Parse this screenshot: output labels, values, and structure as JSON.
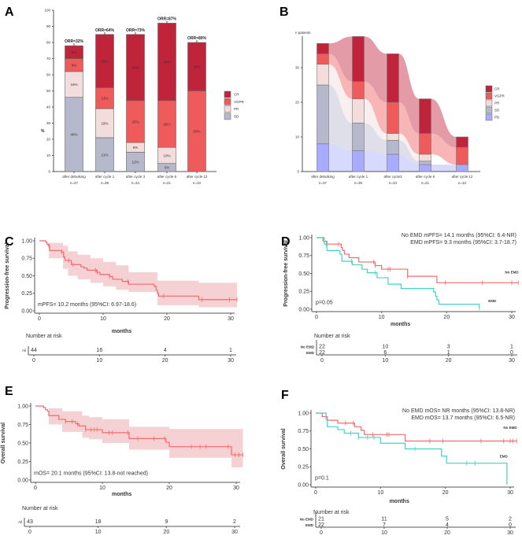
{
  "colors": {
    "CR": "#c0243b",
    "VGPR": "#ef5a5a",
    "PR": "#f2dcdc",
    "SD": "#b6b8cb",
    "PD": "#a9abff",
    "all": "#f26b6b",
    "no_emd": "#f26b6b",
    "emd": "#3fd4c4",
    "ci": "#f5c9cc"
  },
  "chart_data": [
    {
      "panel": "A",
      "type": "bar",
      "stacked": true,
      "ylabel": "%",
      "ylim": [
        0,
        100
      ],
      "yticks": [
        0,
        10,
        20,
        30,
        40,
        50,
        60,
        70,
        80,
        90,
        100
      ],
      "categories": [
        [
          "after debulking",
          "n=37"
        ],
        [
          "after cycle 1",
          "n=39"
        ],
        [
          "after cycle 3",
          "n=34"
        ],
        [
          "after cycle 6",
          "n=21"
        ],
        [
          "after cycle 12",
          "n=10"
        ]
      ],
      "annotations": [
        "ORR=32%",
        "ORR=64%",
        "ORR=73%",
        "ORR=87%",
        "ORR=80%"
      ],
      "series": [
        {
          "name": "SD",
          "values": [
            46,
            21,
            12,
            5,
            0
          ],
          "labels": [
            "46%",
            "21%",
            "12%",
            "5%",
            ""
          ]
        },
        {
          "name": "PR",
          "values": [
            16,
            18,
            6,
            10,
            0
          ],
          "labels": [
            "16%",
            "18%",
            "6%",
            "10%",
            ""
          ]
        },
        {
          "name": "VGPR",
          "values": [
            8,
            13,
            26,
            29,
            50
          ],
          "labels": [
            "8%",
            "13%",
            "26%",
            "29%",
            "50%"
          ]
        },
        {
          "name": "CR",
          "values": [
            8,
            33,
            41,
            48,
            30
          ],
          "labels": [
            "8%",
            "33%",
            "41%",
            "48%",
            "30%"
          ]
        }
      ],
      "legend": [
        "CR",
        "VGPR",
        "PR",
        "SD"
      ],
      "legend_position": "right"
    },
    {
      "panel": "B",
      "type": "alluvial",
      "ylabel": "n patients",
      "yticks": [
        0,
        10,
        20,
        30
      ],
      "categories": [
        [
          "after debulking",
          "n=37"
        ],
        [
          "after cycle 1",
          "n=39"
        ],
        [
          "after cycle3",
          "n=34"
        ],
        [
          "after cycle 6",
          "n=21"
        ],
        [
          "after cycle 12",
          "n=10"
        ]
      ],
      "series": [
        {
          "name": "PD",
          "values": [
            8,
            6,
            5,
            2,
            2
          ]
        },
        {
          "name": "SD",
          "values": [
            17,
            8,
            4,
            1,
            0
          ]
        },
        {
          "name": "PR",
          "values": [
            6,
            7,
            2,
            2,
            0
          ]
        },
        {
          "name": "VGPR",
          "values": [
            3,
            5,
            9,
            6,
            5
          ]
        },
        {
          "name": "CR",
          "values": [
            3,
            13,
            14,
            10,
            3
          ]
        }
      ],
      "legend": [
        "CR",
        "VGPR",
        "PR",
        "SD",
        "PD"
      ],
      "legend_position": "right"
    },
    {
      "panel": "C",
      "type": "line",
      "subtype": "kaplan-meier",
      "xlabel": "months",
      "ylabel": "Progression-free survival",
      "xticks": [
        0,
        10,
        20,
        30
      ],
      "yticks": [
        "0.00",
        "0.25",
        "0.50",
        "0.75",
        "1.00"
      ],
      "xlim": [
        0,
        31
      ],
      "ylim": [
        0,
        1
      ],
      "annotation": "mPFS= 10.2 months (95%CI: 6.97-18.6)",
      "series": [
        {
          "key": "all",
          "steps": [
            [
              0,
              1
            ],
            [
              1,
              0.98
            ],
            [
              1.2,
              0.95
            ],
            [
              1.4,
              0.93
            ],
            [
              1.6,
              0.86
            ],
            [
              3.5,
              0.84
            ],
            [
              3.8,
              0.77
            ],
            [
              4,
              0.72
            ],
            [
              5,
              0.66
            ],
            [
              6.5,
              0.63
            ],
            [
              7,
              0.61
            ],
            [
              7.5,
              0.58
            ],
            [
              9,
              0.55
            ],
            [
              9.5,
              0.52
            ],
            [
              11,
              0.49
            ],
            [
              11.5,
              0.45
            ],
            [
              13,
              0.42
            ],
            [
              14,
              0.38
            ],
            [
              18,
              0.35
            ],
            [
              18.3,
              0.3
            ],
            [
              18.5,
              0.25
            ],
            [
              18.7,
              0.21
            ],
            [
              25,
              0.16
            ]
          ],
          "end": 31,
          "censor": [
            1.5,
            3.5,
            4.6,
            5.3,
            8.8,
            9.1,
            11,
            13.9,
            19.5,
            25.5,
            29.8,
            31
          ],
          "ci": [
            [
              0,
              1,
              1
            ],
            [
              1.5,
              0.75,
              0.97
            ],
            [
              3.7,
              0.6,
              0.93
            ],
            [
              4.5,
              0.5,
              0.85
            ],
            [
              6,
              0.45,
              0.8
            ],
            [
              8,
              0.4,
              0.75
            ],
            [
              10,
              0.35,
              0.7
            ],
            [
              12,
              0.3,
              0.65
            ],
            [
              14,
              0.27,
              0.55
            ],
            [
              18.5,
              0.08,
              0.43
            ],
            [
              25,
              0.05,
              0.4
            ],
            [
              31,
              0.05,
              0.4
            ]
          ]
        }
      ],
      "risk": {
        "title": "Number at risk",
        "rows": [
          {
            "label": "All",
            "key": "all",
            "values": [
              "44",
              "16",
              "4",
              "1"
            ]
          }
        ],
        "xticks": [
          0,
          10,
          20,
          30
        ]
      }
    },
    {
      "panel": "D",
      "type": "line",
      "subtype": "kaplan-meier",
      "xlabel": "months",
      "ylabel": "Progression-free survival",
      "xticks": [
        0,
        10,
        20,
        30
      ],
      "yticks": [
        "0.00",
        "0.25",
        "0.50",
        "0.75",
        "1.00"
      ],
      "xlim": [
        0,
        31
      ],
      "ylim": [
        0,
        1
      ],
      "annotation_lines": [
        "No EMD mPFS= 14.1 months (95%CI: 6.4-NR)",
        "EMD mPFS= 9.3 months (95%CI: 3.7-18.7)"
      ],
      "pvalue": "p=0.05",
      "series": [
        {
          "name": "No EMD",
          "key": "no_emd",
          "steps": [
            [
              0,
              1
            ],
            [
              1,
              0.95
            ],
            [
              1.6,
              0.91
            ],
            [
              3.8,
              0.86
            ],
            [
              4,
              0.82
            ],
            [
              4.3,
              0.77
            ],
            [
              5,
              0.72
            ],
            [
              6.5,
              0.66
            ],
            [
              9,
              0.61
            ],
            [
              10,
              0.56
            ],
            [
              14,
              0.46
            ],
            [
              18.5,
              0.37
            ]
          ],
          "end": 31,
          "censor": [
            3.4,
            8.8,
            9,
            11,
            11.3,
            14,
            19.8,
            25.5,
            30,
            31
          ],
          "label_at": [
            30,
            0.5
          ]
        },
        {
          "name": "EMD",
          "key": "emd",
          "steps": [
            [
              0,
              1
            ],
            [
              1.2,
              0.91
            ],
            [
              1.6,
              0.82
            ],
            [
              3.6,
              0.77
            ],
            [
              3.9,
              0.67
            ],
            [
              5.5,
              0.62
            ],
            [
              7,
              0.56
            ],
            [
              7.8,
              0.51
            ],
            [
              9.3,
              0.44
            ],
            [
              11,
              0.35
            ],
            [
              13,
              0.29
            ],
            [
              18,
              0.24
            ],
            [
              18.3,
              0.18
            ],
            [
              18.5,
              0.13
            ],
            [
              18.8,
              0.07
            ],
            [
              25,
              0.02
            ]
          ],
          "end": 25,
          "censor": [
            1.5,
            5.4,
            9,
            25
          ],
          "label_at": [
            27,
            0.1
          ]
        }
      ],
      "risk": {
        "title": "Number at risk",
        "rows": [
          {
            "label": "No EMD",
            "key": "no_emd",
            "values": [
              "22",
              "10",
              "3",
              "1"
            ]
          },
          {
            "label": "EMD",
            "key": "emd",
            "values": [
              "22",
              "6",
              "1",
              "0"
            ]
          }
        ],
        "xticks": [
          0,
          10,
          20,
          30
        ]
      }
    },
    {
      "panel": "E",
      "type": "line",
      "subtype": "kaplan-meier",
      "xlabel": "months",
      "ylabel": "Overall survival",
      "xticks": [
        0,
        10,
        20,
        30
      ],
      "yticks": [
        "0.00",
        "0.25",
        "0.50",
        "0.75",
        "1.00"
      ],
      "xlim": [
        0,
        31
      ],
      "ylim": [
        0,
        1
      ],
      "annotation": "mOS= 20.1 months (95%CI: 13.8-not reached)",
      "series": [
        {
          "key": "all",
          "steps": [
            [
              0,
              1
            ],
            [
              1.2,
              0.98
            ],
            [
              1.5,
              0.95
            ],
            [
              1.8,
              0.93
            ],
            [
              2,
              0.87
            ],
            [
              3.5,
              0.82
            ],
            [
              4.5,
              0.79
            ],
            [
              6,
              0.76
            ],
            [
              6.5,
              0.73
            ],
            [
              7.5,
              0.68
            ],
            [
              10,
              0.64
            ],
            [
              14,
              0.56
            ],
            [
              19.5,
              0.51
            ],
            [
              20,
              0.45
            ],
            [
              29.3,
              0.34
            ]
          ],
          "end": 31,
          "censor": [
            4.5,
            5.5,
            6.3,
            7.5,
            8.3,
            8.8,
            9.2,
            11,
            11.5,
            13.8,
            15.3,
            17.7,
            19.3,
            23.3,
            24.6,
            25.5,
            28.8,
            29.8,
            30.4,
            31
          ],
          "ci": [
            [
              0,
              1,
              1
            ],
            [
              2,
              0.75,
              0.97
            ],
            [
              4,
              0.65,
              0.93
            ],
            [
              7,
              0.57,
              0.87
            ],
            [
              8,
              0.55,
              0.85
            ],
            [
              10,
              0.5,
              0.82
            ],
            [
              14,
              0.41,
              0.72
            ],
            [
              20,
              0.3,
              0.69
            ],
            [
              29.3,
              0.17,
              0.69
            ],
            [
              31,
              0.17,
              0.69
            ]
          ]
        }
      ],
      "risk": {
        "title": "Number at risk",
        "rows": [
          {
            "label": "All",
            "key": "all",
            "values": [
              "43",
              "18",
              "9",
              "2"
            ]
          }
        ],
        "xticks": [
          0,
          10,
          20,
          30
        ]
      }
    },
    {
      "panel": "F",
      "type": "line",
      "subtype": "kaplan-meier",
      "xlabel": "months",
      "ylabel": "Overall survival",
      "xticks": [
        0,
        10,
        20,
        30
      ],
      "yticks": [
        "0.00",
        "0.25",
        "0.50",
        "0.75",
        "1.00"
      ],
      "xlim": [
        0,
        31
      ],
      "ylim": [
        0,
        1
      ],
      "annotation_lines": [
        "No EMD mOS= NR months (95%CI: 13.8-NR)",
        "EMD mOS= 13.7 months (95%CI: 6.5-NR)"
      ],
      "pvalue": "p=0.1",
      "series": [
        {
          "name": "No EMD",
          "key": "no_emd",
          "steps": [
            [
              0,
              1
            ],
            [
              1,
              0.95
            ],
            [
              1.8,
              0.9
            ],
            [
              3.4,
              0.86
            ],
            [
              6,
              0.81
            ],
            [
              7,
              0.76
            ],
            [
              7.5,
              0.7
            ],
            [
              13.8,
              0.61
            ]
          ],
          "end": 31,
          "censor": [
            4.6,
            5.8,
            8.8,
            11,
            11.3,
            17.6,
            19.6,
            25.5,
            29,
            30,
            30.4,
            31
          ],
          "label_at": [
            30,
            0.78
          ]
        },
        {
          "name": "EMD",
          "key": "emd",
          "steps": [
            [
              0,
              1
            ],
            [
              1.6,
              0.91
            ],
            [
              1.8,
              0.81
            ],
            [
              3.4,
              0.77
            ],
            [
              4.4,
              0.72
            ],
            [
              6.6,
              0.66
            ],
            [
              10,
              0.58
            ],
            [
              13.8,
              0.5
            ],
            [
              19.4,
              0.4
            ],
            [
              20.2,
              0.3
            ],
            [
              29.5,
              0
            ]
          ],
          "end": 29.5,
          "censor": [
            5.4,
            6.6,
            8,
            9,
            15.3,
            23.3,
            24.6
          ],
          "label_at": [
            29,
            0.38
          ]
        }
      ],
      "risk": {
        "title": "Number at risk",
        "rows": [
          {
            "label": "No EMD",
            "key": "no_emd",
            "values": [
              "21",
              "11",
              "5",
              "2"
            ]
          },
          {
            "label": "EMD",
            "key": "emd",
            "values": [
              "22",
              "7",
              "4",
              "0"
            ]
          }
        ],
        "xticks": [
          0,
          10,
          20,
          30
        ]
      }
    }
  ]
}
